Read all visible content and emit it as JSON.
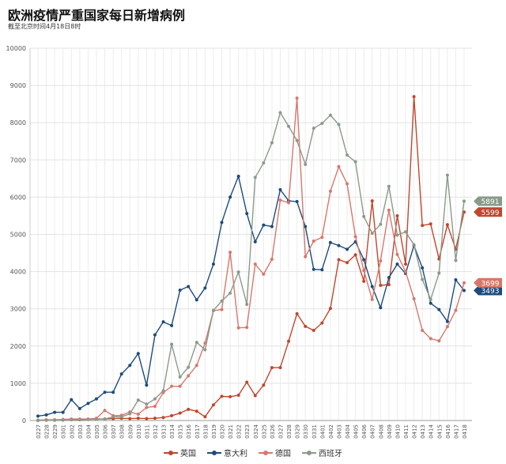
{
  "header": {
    "title": "欧洲疫情严重国家每日新增病例",
    "subtitle": "截至北京时间4月18日8时"
  },
  "chart_data": {
    "type": "line",
    "title": "欧洲疫情严重国家每日新增病例",
    "subtitle": "截至北京时间4月18日8时",
    "xlabel": "",
    "ylabel": "",
    "ylim": [
      0,
      10000
    ],
    "yticks": [
      0,
      1000,
      2000,
      3000,
      4000,
      5000,
      6000,
      7000,
      8000,
      9000,
      10000
    ],
    "grid": true,
    "legend": "bottom",
    "x": [
      "0227",
      "0228",
      "0229",
      "0301",
      "0302",
      "0303",
      "0304",
      "0305",
      "0306",
      "0307",
      "0308",
      "0309",
      "0310",
      "0311",
      "0312",
      "0313",
      "0314",
      "0315",
      "0316",
      "0317",
      "0318",
      "0319",
      "0320",
      "0321",
      "0322",
      "0323",
      "0324",
      "0325",
      "0326",
      "0327",
      "0328",
      "0329",
      "0330",
      "0331",
      "0401",
      "0402",
      "0403",
      "0404",
      "0405",
      "0406",
      "0407",
      "0408",
      "0409",
      "0410",
      "0411",
      "0412",
      "0413",
      "0414",
      "0415",
      "0416",
      "0417",
      "0418"
    ],
    "series": [
      {
        "name": "英国",
        "color": "#c0462e",
        "end_label": "5599",
        "values": [
          5,
          10,
          10,
          10,
          20,
          20,
          30,
          40,
          40,
          50,
          60,
          50,
          60,
          50,
          60,
          80,
          130,
          200,
          300,
          250,
          100,
          420,
          650,
          640,
          680,
          1030,
          670,
          950,
          1420,
          1420,
          2130,
          2870,
          2530,
          2420,
          2620,
          3010,
          4320,
          4240,
          4450,
          3740,
          5900,
          3630,
          3650,
          5500,
          4200,
          8700,
          5240,
          5280,
          4340,
          5260,
          4600,
          5599
        ]
      },
      {
        "name": "意大利",
        "color": "#1d4b7a",
        "end_label": "3493",
        "values": [
          120,
          150,
          220,
          220,
          560,
          320,
          460,
          580,
          760,
          760,
          1250,
          1480,
          1800,
          950,
          2300,
          2650,
          2550,
          3500,
          3600,
          3240,
          3560,
          4200,
          5320,
          6000,
          6560,
          5560,
          4800,
          5250,
          5210,
          6200,
          5900,
          5880,
          5210,
          4060,
          4050,
          4780,
          4700,
          4600,
          4800,
          4320,
          3600,
          3030,
          3840,
          4200,
          3950,
          4700,
          4100,
          3150,
          2980,
          2660,
          3780,
          3493
        ]
      },
      {
        "name": "德国",
        "color": "#d8776b",
        "end_label": "3699",
        "values": [
          10,
          20,
          20,
          30,
          40,
          40,
          40,
          60,
          270,
          130,
          140,
          230,
          170,
          350,
          380,
          750,
          920,
          920,
          1200,
          1480,
          2080,
          2950,
          2980,
          4520,
          2490,
          2500,
          4200,
          3930,
          4330,
          5920,
          5850,
          8660,
          4400,
          4820,
          4920,
          6160,
          6820,
          6360,
          4940,
          4030,
          3250,
          4290,
          5650,
          4460,
          4000,
          3270,
          2420,
          2200,
          2140,
          2520,
          2960,
          3699
        ]
      },
      {
        "name": "西班牙",
        "color": "#8a9a8a",
        "end_label": "5891",
        "values": [
          0,
          5,
          5,
          10,
          20,
          30,
          30,
          30,
          40,
          100,
          100,
          180,
          550,
          440,
          580,
          800,
          2050,
          1170,
          1430,
          2100,
          1900,
          2960,
          3210,
          3420,
          3990,
          3120,
          6530,
          6920,
          7460,
          8270,
          7900,
          7520,
          6880,
          7850,
          7980,
          8200,
          7950,
          7130,
          6950,
          5480,
          5030,
          5270,
          6290,
          4980,
          5070,
          4720,
          3790,
          3250,
          3960,
          6590,
          4300,
          5891
        ]
      }
    ]
  }
}
